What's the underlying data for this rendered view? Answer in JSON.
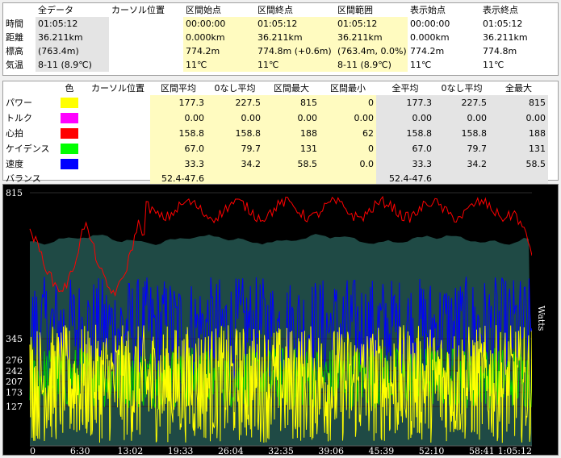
{
  "summary": {
    "headers": [
      "",
      "全データ",
      "カーソル位置",
      "区間始点",
      "区間終点",
      "区間範囲",
      "表示始点",
      "表示終点"
    ],
    "rows": [
      {
        "label": "時間",
        "values": [
          "01:05:12",
          "",
          "00:00:00",
          "01:05:12",
          "01:05:12",
          "00:00:00",
          "01:05:12"
        ]
      },
      {
        "label": "距離",
        "values": [
          "36.211km",
          "",
          "0.000km",
          "36.211km",
          "36.211km",
          "0.000km",
          "36.211km"
        ]
      },
      {
        "label": "標高",
        "values": [
          "(763.4m)",
          "",
          "774.2m",
          "774.8m (+0.6m)",
          "(763.4m, 0.0%)",
          "774.2m",
          "774.8m"
        ]
      },
      {
        "label": "気温",
        "values": [
          "8-11 (8.9℃)",
          "",
          "11℃",
          "11℃",
          "8-11 (8.9℃)",
          "11℃",
          "11℃"
        ]
      }
    ]
  },
  "stats": {
    "headers": [
      "",
      "色",
      "カーソル位置",
      "区間平均",
      "0なし平均",
      "区間最大",
      "区間最小",
      "全平均",
      "0なし平均",
      "全最大"
    ],
    "rows": [
      {
        "label": "パワー",
        "color": "#ffff00",
        "values": [
          "",
          "177.3",
          "227.5",
          "815",
          "0",
          "177.3",
          "227.5",
          "815"
        ]
      },
      {
        "label": "トルク",
        "color": "#ff00ff",
        "values": [
          "",
          "0.00",
          "0.00",
          "0.00",
          "0.00",
          "0.00",
          "0.00",
          "0.00"
        ]
      },
      {
        "label": "心拍",
        "color": "#ff0000",
        "values": [
          "",
          "158.8",
          "158.8",
          "188",
          "62",
          "158.8",
          "158.8",
          "188"
        ]
      },
      {
        "label": "ケイデンス",
        "color": "#00ff00",
        "values": [
          "",
          "67.0",
          "79.7",
          "131",
          "0",
          "67.0",
          "79.7",
          "131"
        ]
      },
      {
        "label": "速度",
        "color": "#0000ff",
        "values": [
          "",
          "33.3",
          "34.2",
          "58.5",
          "0.0",
          "33.3",
          "34.2",
          "58.5"
        ]
      }
    ],
    "balance": {
      "label": "バランス",
      "section": "52.4-47.6",
      "all": "52.4-47.6"
    }
  },
  "chart_data": {
    "type": "line",
    "unit_label": "Watts",
    "y_ticks": [
      "815",
      "345",
      "276",
      "242",
      "207",
      "173",
      "127"
    ],
    "x_ticks": [
      "0",
      "6:30",
      "13:02",
      "19:33",
      "26:04",
      "32:35",
      "39:06",
      "45:39",
      "52:10",
      "58:41",
      "1:05:12"
    ],
    "ylim": [
      0,
      815
    ],
    "series": [
      {
        "name": "パワー",
        "color": "#ffff00"
      },
      {
        "name": "ケイデンス",
        "color": "#00ff00"
      },
      {
        "name": "速度",
        "color": "#0000ff"
      },
      {
        "name": "心拍",
        "color": "#ff0000"
      }
    ]
  }
}
